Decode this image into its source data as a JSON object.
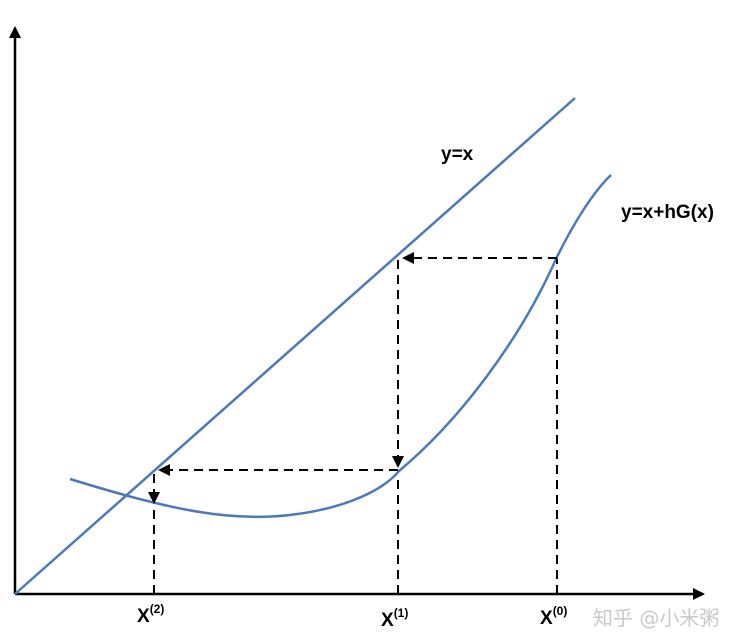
{
  "curves": {
    "line_label": "y=x",
    "curve_label": "y=x+hG(x)",
    "line_color": "#4a7ab8",
    "curve_color": "#4a7ab8"
  },
  "ticks": [
    {
      "base": "X",
      "sup": "(2)"
    },
    {
      "base": "X",
      "sup": "(1)"
    },
    {
      "base": "X",
      "sup": "(0)"
    }
  ],
  "watermark": {
    "text": "知乎 @小米粥"
  },
  "colors": {
    "axis": "#000000",
    "dashed": "#000000",
    "watermark": "#c9c9c9"
  }
}
